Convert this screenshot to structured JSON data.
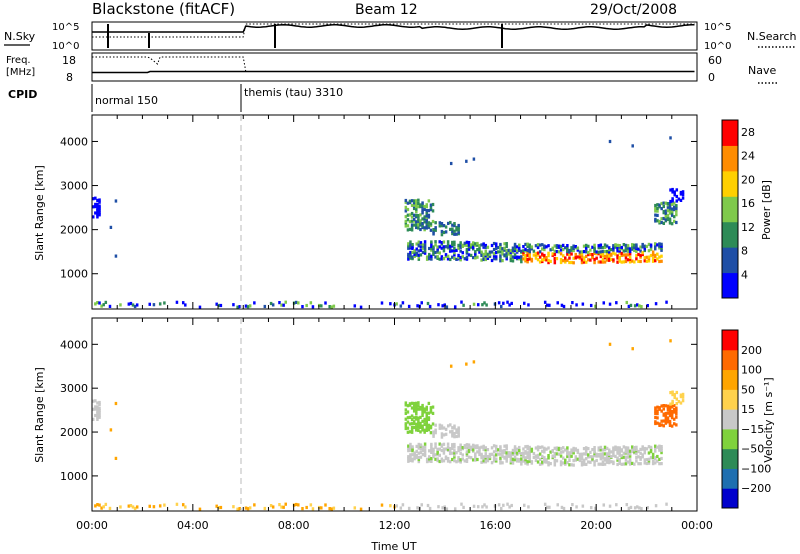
{
  "header": {
    "title": "Blackstone (fitACF)",
    "beam": "Beam 12",
    "date": "29/Oct/2008"
  },
  "top_panels": {
    "nsky_label": "N.Sky",
    "nsearch_label": "N.Search",
    "nsky_ticks": [
      "10^5",
      "10^0"
    ],
    "nsearch_ticks": [
      "10^5",
      "10^0"
    ],
    "freq_label_1": "Freq.",
    "freq_label_2": "[MHz]",
    "freq_ticks": [
      "18",
      "8"
    ],
    "nave_label": "Nave",
    "nave_ticks": [
      "60",
      "0"
    ],
    "cpid_label": "CPID",
    "cpid_modes": [
      {
        "name": "normal 150",
        "start_hour": 0
      },
      {
        "name": "themis (tau) 3310",
        "start_hour": 6
      }
    ]
  },
  "colors": {
    "axis": "#000000",
    "mode_change_line": "#bbbbbb",
    "ground_scatter": "#b8b8b8"
  },
  "chart_data": [
    {
      "type": "heatmap",
      "name": "power",
      "ylabel": "Slant Range [km]",
      "yticks": [
        "1000",
        "2000",
        "3000",
        "4000"
      ],
      "ylim": [
        200,
        4600
      ],
      "xlim": [
        0,
        24
      ],
      "colorbar": {
        "label": "Power [dB]",
        "ticks": [
          "4",
          "8",
          "12",
          "16",
          "20",
          "24",
          "28"
        ],
        "range": [
          0,
          30
        ],
        "colors": [
          "#0000ff",
          "#1f4fa6",
          "#2e8b57",
          "#7fc94b",
          "#ffd000",
          "#ff8c00",
          "#ff0000"
        ]
      }
    },
    {
      "type": "heatmap",
      "name": "velocity",
      "ylabel": "Slant Range [km]",
      "yticks": [
        "1000",
        "2000",
        "3000",
        "4000"
      ],
      "ylim": [
        200,
        4600
      ],
      "xlim": [
        0,
        24
      ],
      "xticks": [
        "00:00",
        "04:00",
        "08:00",
        "12:00",
        "16:00",
        "20:00",
        "00:00"
      ],
      "xlabel": "Time UT",
      "colorbar": {
        "label": "Velocity [m s⁻¹]",
        "ticks": [
          "200",
          "100",
          "50",
          "15",
          "−15",
          "−50",
          "−100",
          "−200"
        ],
        "colors": [
          "#0000cc",
          "#1f6fb0",
          "#2e8b57",
          "#7fd23c",
          "#c8c8c8",
          "#ffd24d",
          "#ffa500",
          "#ff6a00",
          "#ff0000"
        ]
      }
    }
  ]
}
